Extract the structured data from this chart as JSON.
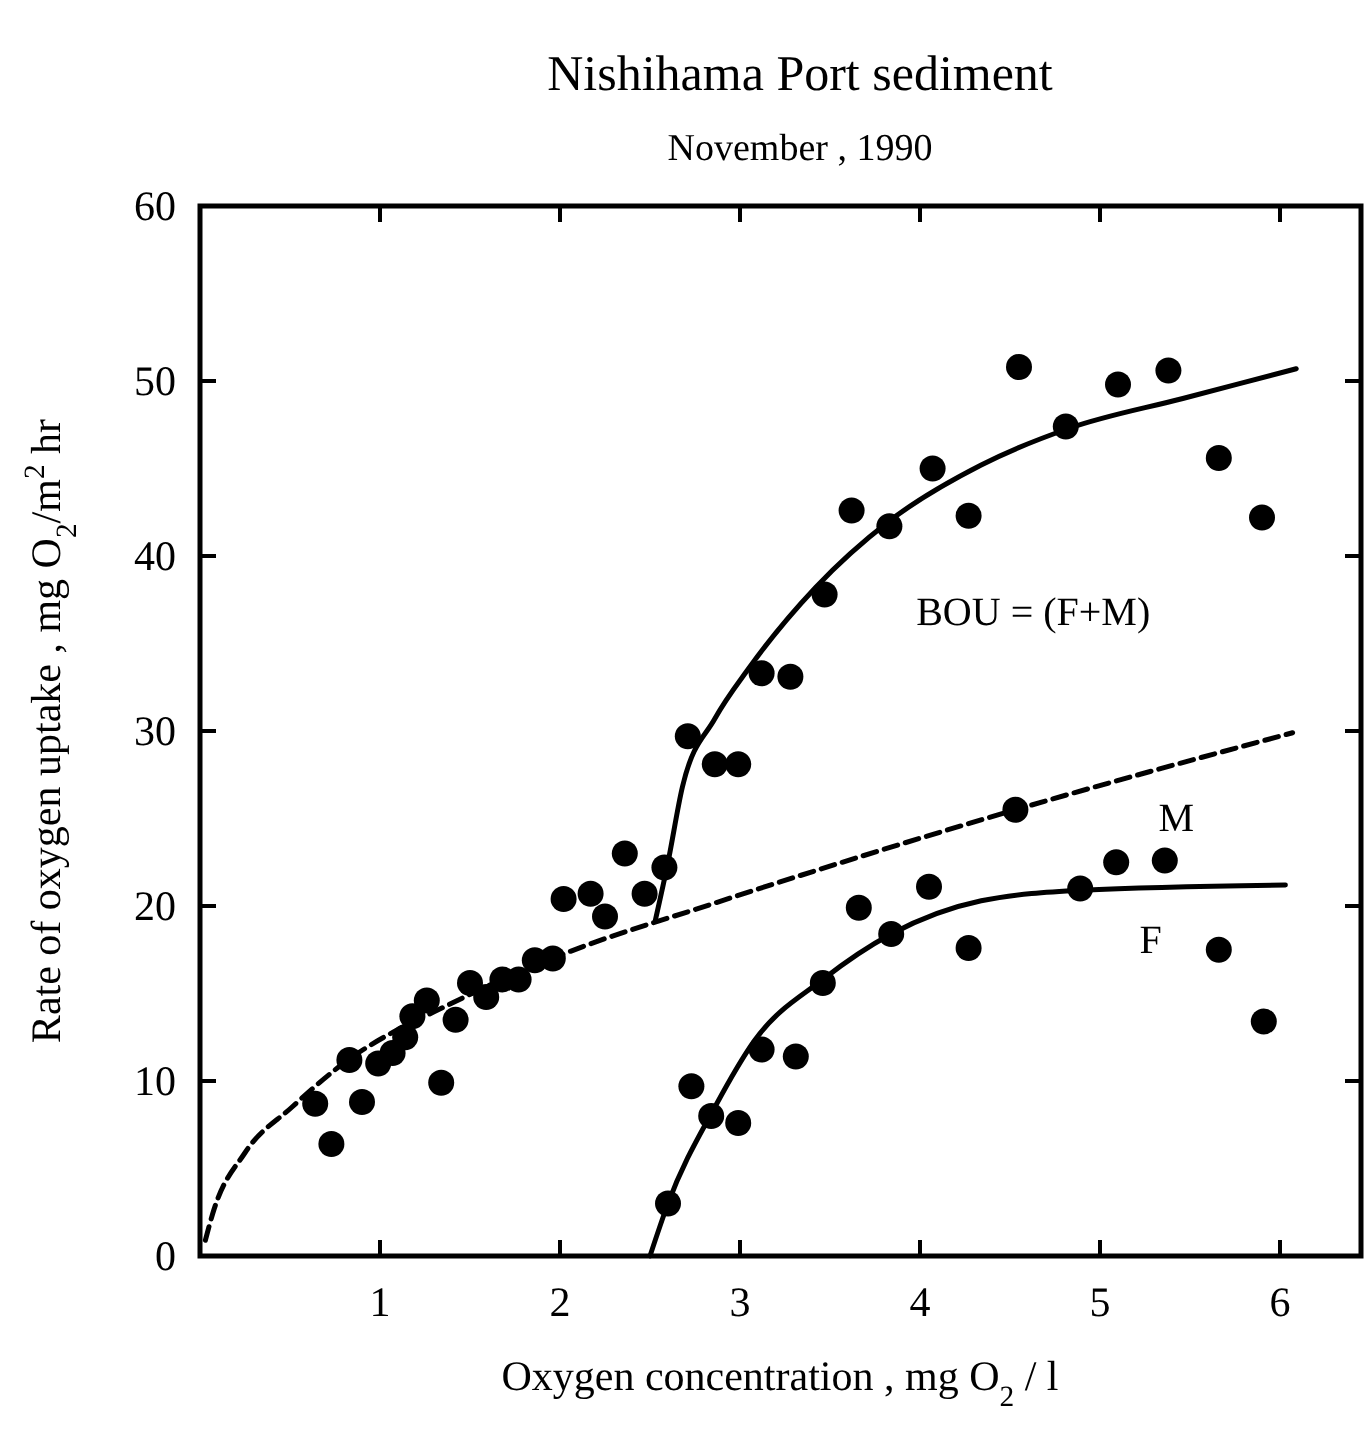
{
  "chart_data": {
    "type": "scatter",
    "title": "Nishihama Port sediment",
    "subtitle": "November , 1990",
    "xlabel": "Oxygen concentration , mg O$_{2}$ / l",
    "ylabel": "Rate of oxygen uptake , mg O$_{2}$/m$^{2}$ hr",
    "xlim": [
      0,
      6.45
    ],
    "ylim": [
      0,
      60
    ],
    "xticks": [
      1,
      2,
      3,
      4,
      5,
      6
    ],
    "yticks": [
      0,
      10,
      20,
      30,
      40,
      50,
      60
    ],
    "series": [
      {
        "color": "#000000",
        "marker": "circle",
        "x": [
          0.64,
          0.73,
          0.9,
          0.83,
          0.99,
          1.07,
          1.14,
          1.18,
          1.26,
          1.34,
          1.42,
          1.5,
          1.59,
          1.68,
          1.77,
          1.86,
          1.96,
          2.02,
          2.17,
          2.25,
          2.36,
          2.47,
          2.58,
          2.71,
          2.86,
          2.99,
          3.12,
          3.28,
          3.47,
          3.62,
          3.83,
          4.07,
          4.27,
          4.55,
          4.81,
          5.1,
          5.38,
          5.66,
          5.9,
          4.53,
          2.6,
          2.73,
          2.84,
          2.99,
          3.12,
          3.31,
          3.46,
          3.66,
          3.84,
          4.05,
          4.27,
          4.89,
          5.09,
          5.36,
          5.66,
          5.91
        ],
        "values": [
          8.7,
          6.4,
          8.8,
          11.2,
          11.0,
          11.6,
          12.5,
          13.7,
          14.6,
          9.9,
          13.5,
          15.6,
          14.8,
          15.8,
          15.8,
          16.9,
          17.0,
          20.4,
          20.7,
          19.4,
          23.0,
          20.7,
          22.2,
          29.7,
          28.1,
          28.1,
          33.3,
          33.1,
          37.8,
          42.6,
          41.7,
          45.0,
          42.3,
          50.8,
          47.4,
          49.8,
          50.6,
          45.6,
          42.2,
          25.5,
          3.0,
          9.7,
          8.0,
          7.6,
          11.8,
          11.4,
          15.6,
          19.9,
          18.4,
          21.1,
          17.6,
          21.0,
          22.5,
          22.6,
          17.5,
          13.4
        ]
      },
      {
        "type": "line",
        "name": "BOU = (F+M)",
        "color": "#000000",
        "line_style": "solid",
        "marker": "none",
        "x": [
          2.53,
          2.6,
          2.68,
          2.86,
          3.05,
          3.42,
          3.83,
          4.34,
          4.83,
          5.46,
          6.09
        ],
        "values": [
          19.2,
          22.5,
          26.8,
          30.7,
          33.6,
          38.2,
          42.0,
          45.2,
          47.3,
          49.0,
          50.7
        ]
      },
      {
        "type": "line",
        "name": "M",
        "color": "#000000",
        "line_style": "dashed",
        "marker": "none",
        "x": [
          0.03,
          0.07,
          0.25,
          0.51,
          0.77,
          1.43,
          2.03,
          2.84,
          4.53,
          6.07
        ],
        "values": [
          0.9,
          2.4,
          5.9,
          8.5,
          10.8,
          14.6,
          17.3,
          20.1,
          25.5,
          29.9
        ]
      },
      {
        "type": "line",
        "name": "F",
        "color": "#000000",
        "line_style": "solid",
        "marker": "none",
        "x": [
          2.5,
          2.6,
          2.86,
          3.08,
          3.46,
          3.84,
          4.34,
          4.9,
          6.03
        ],
        "values": [
          0,
          3.0,
          8.5,
          12.3,
          15.8,
          18.4,
          20.3,
          20.9,
          21.2
        ]
      }
    ]
  }
}
